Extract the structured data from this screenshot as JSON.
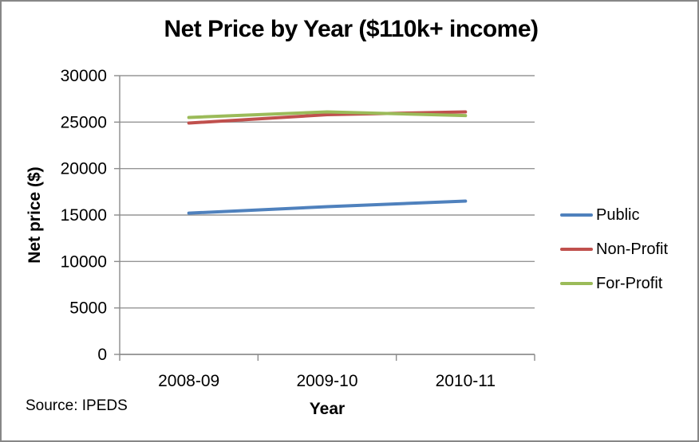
{
  "window": {
    "background": "#ffffff",
    "border_color": "#878787"
  },
  "chart_data": {
    "type": "line",
    "title": "Net Price by Year ($110k+ income)",
    "xlabel": "Year",
    "ylabel": "Net price ($)",
    "categories": [
      "2008-09",
      "2009-10",
      "2010-11"
    ],
    "series": [
      {
        "name": "Public",
        "color": "#4F81BD",
        "values": [
          15200,
          15900,
          16500
        ]
      },
      {
        "name": "Non-Profit",
        "color": "#C0504D",
        "values": [
          24900,
          25800,
          26100
        ]
      },
      {
        "name": "For-Profit",
        "color": "#9BBB59",
        "values": [
          25500,
          26100,
          25700
        ]
      }
    ],
    "ylim": [
      0,
      30000
    ],
    "ytick_step": 5000,
    "yticks": [
      0,
      5000,
      10000,
      15000,
      20000,
      25000,
      30000
    ],
    "grid": true,
    "legend_position": "right",
    "gridline_color": "#959595",
    "axis_color": "#8c8c8c",
    "line_width": 4
  },
  "footer": {
    "source": "Source: IPEDS"
  }
}
